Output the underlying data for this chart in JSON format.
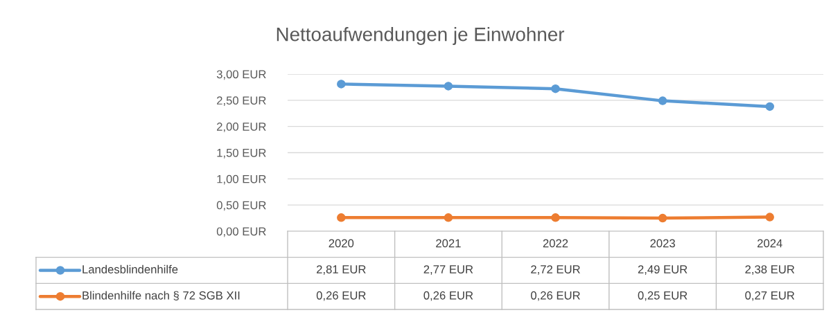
{
  "chart_data": {
    "type": "line",
    "title": "Nettoaufwendungen je Einwohner",
    "categories": [
      "2020",
      "2021",
      "2022",
      "2023",
      "2024"
    ],
    "series": [
      {
        "name": "Landesblindenhilfe",
        "color": "#5b9bd5",
        "values": [
          2.81,
          2.77,
          2.72,
          2.49,
          2.38
        ],
        "value_labels": [
          "2,81 EUR",
          "2,77 EUR",
          "2,72 EUR",
          "2,49 EUR",
          "2,38 EUR"
        ]
      },
      {
        "name": "Blindenhilfe nach § 72 SGB XII",
        "color": "#ed7d31",
        "values": [
          0.26,
          0.26,
          0.26,
          0.25,
          0.27
        ],
        "value_labels": [
          "0,26 EUR",
          "0,26 EUR",
          "0,26 EUR",
          "0,25 EUR",
          "0,27 EUR"
        ]
      }
    ],
    "ylim": [
      0,
      3
    ],
    "yticks": [
      {
        "value": 0,
        "label": "0,00 EUR"
      },
      {
        "value": 0.5,
        "label": "0,50 EUR"
      },
      {
        "value": 1,
        "label": "1,00 EUR"
      },
      {
        "value": 1.5,
        "label": "1,50 EUR"
      },
      {
        "value": 2,
        "label": "2,00 EUR"
      },
      {
        "value": 2.5,
        "label": "2,50 EUR"
      },
      {
        "value": 3,
        "label": "3,00 EUR"
      }
    ],
    "grid": "y",
    "legend": "bottom",
    "marker": "circle",
    "line_style": "solid"
  }
}
